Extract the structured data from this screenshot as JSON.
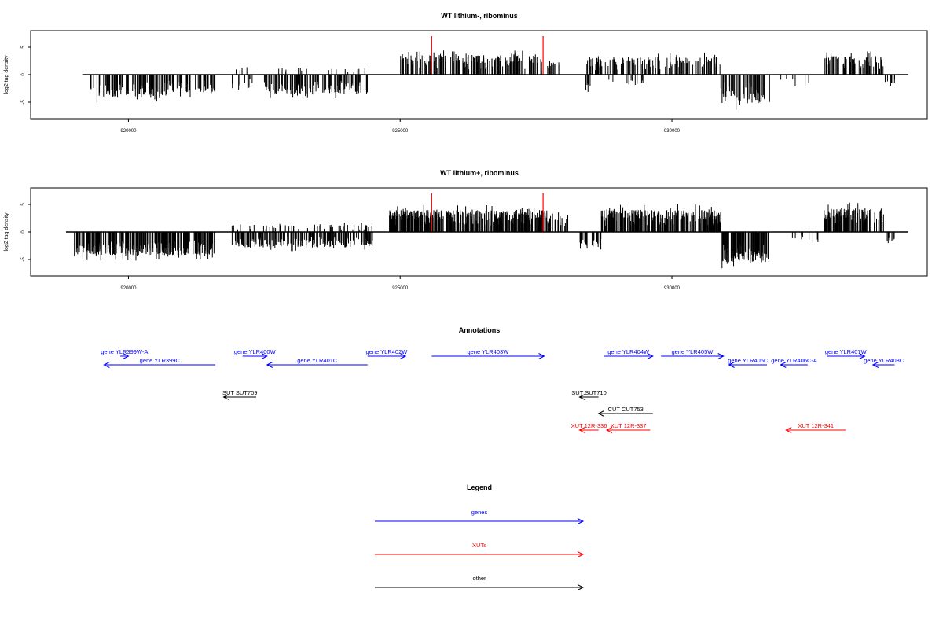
{
  "chart_data": [
    {
      "type": "bar",
      "title": "WT lithium-, ribominus",
      "ylabel": "log2 tag density",
      "xlim": [
        918200,
        934700
      ],
      "ylim": [
        -8,
        8
      ],
      "x_ticks": [
        920000,
        925000,
        930000
      ],
      "x_tick_labels": [
        "920000",
        "925000",
        "930000"
      ],
      "y_ticks": [
        -5,
        0,
        5
      ],
      "y_tick_labels": [
        "-5",
        "0",
        "5"
      ],
      "highlight_lines": [
        {
          "x": 925580,
          "y": 7,
          "color": "#ff0000"
        },
        {
          "x": 927630,
          "y": 7,
          "color": "#ff0000"
        }
      ],
      "series": [
        {
          "color": "#000000",
          "segments": [
            {
              "start": 919300,
              "end": 920700,
              "sign": -1,
              "amp": 4.2,
              "density": 1.0
            },
            {
              "start": 920700,
              "end": 921600,
              "sign": -1,
              "amp": 3.4,
              "density": 0.9
            },
            {
              "start": 921900,
              "end": 922300,
              "sign": 1,
              "amp": 1.4,
              "density": 0.15
            },
            {
              "start": 921900,
              "end": 922300,
              "sign": -1,
              "amp": 2.5,
              "density": 0.4
            },
            {
              "start": 922500,
              "end": 924400,
              "sign": -1,
              "amp": 3.6,
              "density": 0.9
            },
            {
              "start": 922700,
              "end": 924400,
              "sign": 1,
              "amp": 1.2,
              "density": 0.15
            },
            {
              "start": 925000,
              "end": 927600,
              "sign": 1,
              "amp": 3.6,
              "density": 1.0
            },
            {
              "start": 927600,
              "end": 928000,
              "sign": 1,
              "amp": 2.6,
              "density": 0.5
            },
            {
              "start": 928400,
              "end": 928500,
              "sign": -1,
              "amp": 3.2,
              "density": 1.0
            },
            {
              "start": 928400,
              "end": 930200,
              "sign": 1,
              "amp": 3.2,
              "density": 0.8
            },
            {
              "start": 928800,
              "end": 929600,
              "sign": -1,
              "amp": 2.0,
              "density": 0.2
            },
            {
              "start": 930200,
              "end": 930900,
              "sign": 1,
              "amp": 3.3,
              "density": 0.7
            },
            {
              "start": 930900,
              "end": 931800,
              "sign": -1,
              "amp": 5.2,
              "density": 1.0
            },
            {
              "start": 932000,
              "end": 932600,
              "sign": -1,
              "amp": 2.2,
              "density": 0.15
            },
            {
              "start": 932800,
              "end": 933900,
              "sign": 1,
              "amp": 3.4,
              "density": 1.0
            },
            {
              "start": 933900,
              "end": 934100,
              "sign": -1,
              "amp": 2.0,
              "density": 0.5
            }
          ]
        }
      ]
    },
    {
      "type": "bar",
      "title": "WT lithium+, ribominus",
      "ylabel": "log2 tag density",
      "xlim": [
        918200,
        934700
      ],
      "ylim": [
        -8,
        8
      ],
      "x_ticks": [
        920000,
        925000,
        930000
      ],
      "x_tick_labels": [
        "920000",
        "925000",
        "930000"
      ],
      "y_ticks": [
        -5,
        0,
        5
      ],
      "y_tick_labels": [
        "-5",
        "0",
        "5"
      ],
      "highlight_lines": [
        {
          "x": 925580,
          "y": 7,
          "color": "#ff0000"
        },
        {
          "x": 927630,
          "y": 7,
          "color": "#ff0000"
        }
      ],
      "series": [
        {
          "color": "#000000",
          "segments": [
            {
              "start": 919000,
              "end": 921600,
              "sign": -1,
              "amp": 4.2,
              "density": 1.6
            },
            {
              "start": 921900,
              "end": 924500,
              "sign": -1,
              "amp": 2.8,
              "density": 1.2
            },
            {
              "start": 921900,
              "end": 924500,
              "sign": 1,
              "amp": 1.4,
              "density": 0.3
            },
            {
              "start": 924800,
              "end": 927700,
              "sign": 1,
              "amp": 4.0,
              "density": 1.8
            },
            {
              "start": 927700,
              "end": 928100,
              "sign": 1,
              "amp": 3.0,
              "density": 0.9
            },
            {
              "start": 928300,
              "end": 928700,
              "sign": -1,
              "amp": 2.8,
              "density": 1.0
            },
            {
              "start": 928700,
              "end": 930900,
              "sign": 1,
              "amp": 4.0,
              "density": 1.8
            },
            {
              "start": 930900,
              "end": 931800,
              "sign": -1,
              "amp": 5.5,
              "density": 1.8
            },
            {
              "start": 932000,
              "end": 932700,
              "sign": -1,
              "amp": 1.8,
              "density": 0.2
            },
            {
              "start": 932800,
              "end": 933900,
              "sign": 1,
              "amp": 4.3,
              "density": 1.8
            },
            {
              "start": 933900,
              "end": 934100,
              "sign": -1,
              "amp": 1.8,
              "density": 0.6
            }
          ]
        }
      ]
    }
  ],
  "annotations": {
    "title": "Annotations",
    "features": [
      {
        "label": "gene YLR399W-A",
        "start": 919850,
        "end": 920000,
        "strand": "+",
        "color": "#0000ff",
        "row": 0
      },
      {
        "label": "gene YLR399C",
        "start": 919550,
        "end": 921600,
        "strand": "-",
        "color": "#0000ff",
        "row": 1
      },
      {
        "label": "gene YLR400W",
        "start": 922100,
        "end": 922550,
        "strand": "+",
        "color": "#0000ff",
        "row": 0
      },
      {
        "label": "gene YLR401C",
        "start": 922550,
        "end": 924400,
        "strand": "-",
        "color": "#0000ff",
        "row": 1
      },
      {
        "label": "gene YLR402W",
        "start": 924400,
        "end": 925100,
        "strand": "+",
        "color": "#0000ff",
        "row": 0
      },
      {
        "label": "gene YLR403W",
        "start": 925580,
        "end": 927650,
        "strand": "+",
        "color": "#0000ff",
        "row": 0
      },
      {
        "label": "gene YLR404W",
        "start": 928750,
        "end": 929650,
        "strand": "+",
        "color": "#0000ff",
        "row": 0
      },
      {
        "label": "gene YLR405W",
        "start": 929800,
        "end": 930950,
        "strand": "+",
        "color": "#0000ff",
        "row": 0
      },
      {
        "label": "gene YLR406C",
        "start": 931050,
        "end": 931750,
        "strand": "-",
        "color": "#0000ff",
        "row": 1
      },
      {
        "label": "gene YLR406C-A",
        "start": 932000,
        "end": 932500,
        "strand": "-",
        "color": "#0000ff",
        "row": 1
      },
      {
        "label": "gene YLR407W",
        "start": 932850,
        "end": 933550,
        "strand": "+",
        "color": "#0000ff",
        "row": 0
      },
      {
        "label": "gene YLR408C",
        "start": 933700,
        "end": 934100,
        "strand": "-",
        "color": "#0000ff",
        "row": 1
      },
      {
        "label": "SUT SUT709",
        "start": 921750,
        "end": 922350,
        "strand": "-",
        "color": "#000000",
        "row": 4
      },
      {
        "label": "SUT SUT710",
        "start": 928300,
        "end": 928650,
        "strand": "-",
        "color": "#000000",
        "row": 4
      },
      {
        "label": "CUT CUT753",
        "start": 928650,
        "end": 929650,
        "strand": "-",
        "color": "#000000",
        "row": 5
      },
      {
        "label": "XUT 12R-336",
        "start": 928300,
        "end": 928650,
        "strand": "-",
        "color": "#ff0000",
        "row": 6
      },
      {
        "label": "XUT 12R-337",
        "start": 928800,
        "end": 929600,
        "strand": "-",
        "color": "#ff0000",
        "row": 6
      },
      {
        "label": "XUT 12R-341",
        "start": 932100,
        "end": 933200,
        "strand": "-",
        "color": "#ff0000",
        "row": 6
      }
    ]
  },
  "legend": {
    "title": "Legend",
    "entries": [
      {
        "label": "genes",
        "color": "#0000ff"
      },
      {
        "label": "XUTs",
        "color": "#ff0000"
      },
      {
        "label": "other",
        "color": "#000000"
      }
    ]
  }
}
